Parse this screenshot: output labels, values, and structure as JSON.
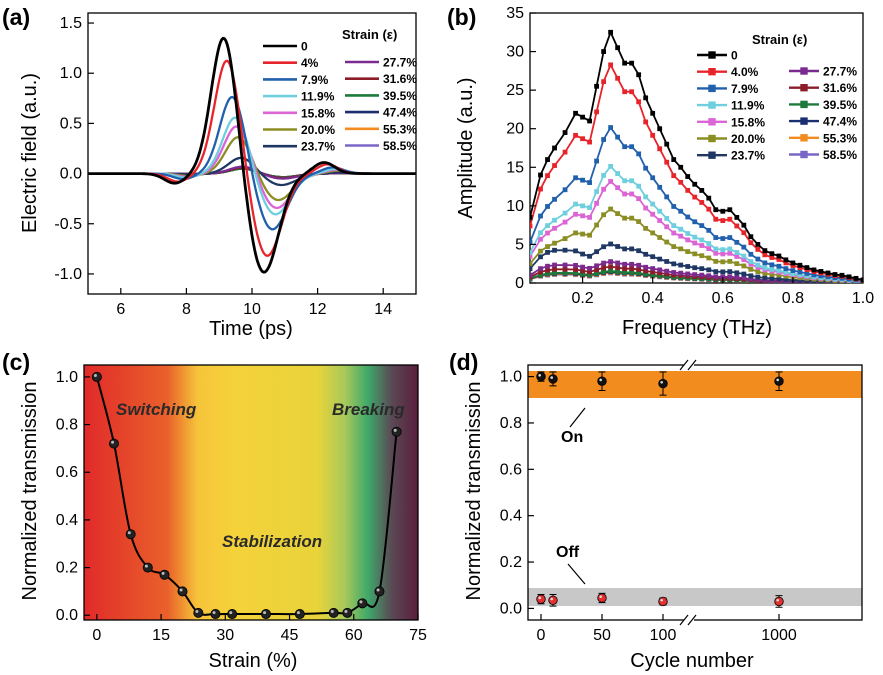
{
  "chart_data": [
    {
      "type": "line",
      "panel_label": "(a)",
      "xlabel": "Time (ps)",
      "ylabel": "Electric field (a.u.)",
      "xlim": [
        5,
        15
      ],
      "ylim": [
        -1.2,
        1.6
      ],
      "xticks": [
        "6",
        "8",
        "10",
        "12",
        "14"
      ],
      "yticks": [
        "1.5",
        "1.0",
        "0.5",
        "0.0",
        "-0.5",
        "-1.0"
      ],
      "legend_title": "Strain (ε)",
      "legend_position": "top-right",
      "series": [
        {
          "name": "0",
          "color": "#000000",
          "amplitude": 1.38
        },
        {
          "name": "4%",
          "color": "#e8242b",
          "amplitude": 1.15
        },
        {
          "name": "7.9%",
          "color": "#2160ad",
          "amplitude": 0.78
        },
        {
          "name": "11.9%",
          "color": "#6fcfde",
          "amplitude": 0.57
        },
        {
          "name": "15.8%",
          "color": "#dc65d6",
          "amplitude": 0.48
        },
        {
          "name": "20.0%",
          "color": "#8b8e24",
          "amplitude": 0.37
        },
        {
          "name": "23.7%",
          "color": "#1e3763",
          "amplitude": 0.16
        },
        {
          "name": "27.7%",
          "color": "#7b2a8e",
          "amplitude": 0.07
        },
        {
          "name": "31.6%",
          "color": "#8c1d29",
          "amplitude": 0.06
        },
        {
          "name": "39.5%",
          "color": "#1d7a3a",
          "amplitude": 0.05
        },
        {
          "name": "47.4%",
          "color": "#1b2e6f",
          "amplitude": 0.05
        },
        {
          "name": "55.3%",
          "color": "#f28c1e",
          "amplitude": 0.05
        },
        {
          "name": "58.5%",
          "color": "#7a66c6",
          "amplitude": 0.05
        }
      ]
    },
    {
      "type": "line",
      "panel_label": "(b)",
      "xlabel": "Frequency (THz)",
      "ylabel": "Amplitude (a.u.)",
      "xlim": [
        0.05,
        1.0
      ],
      "ylim": [
        0,
        35
      ],
      "xticks": [
        "0.2",
        "0.4",
        "0.6",
        "0.8",
        "1.0"
      ],
      "yticks": [
        "35",
        "30",
        "25",
        "20",
        "15",
        "10",
        "5",
        "0"
      ],
      "legend_title": "Strain (ε)",
      "legend_position": "top-right",
      "series": [
        {
          "name": "0",
          "color": "#000000",
          "scale": 1.0
        },
        {
          "name": "4.0%",
          "color": "#e8242b",
          "scale": 0.87
        },
        {
          "name": "7.9%",
          "color": "#2160ad",
          "scale": 0.62
        },
        {
          "name": "11.9%",
          "color": "#6fcfde",
          "scale": 0.465
        },
        {
          "name": "15.8%",
          "color": "#dc65d6",
          "scale": 0.405
        },
        {
          "name": "20.0%",
          "color": "#8b8e24",
          "scale": 0.295
        },
        {
          "name": "23.7%",
          "color": "#1e3763",
          "scale": 0.155
        },
        {
          "name": "27.7%",
          "color": "#7b2a8e",
          "scale": 0.085
        },
        {
          "name": "31.6%",
          "color": "#8c1d29",
          "scale": 0.065
        },
        {
          "name": "39.5%",
          "color": "#1d7a3a",
          "scale": 0.048
        },
        {
          "name": "47.4%",
          "color": "#1b2e6f",
          "scale": 0.045
        },
        {
          "name": "55.3%",
          "color": "#f28c1e",
          "scale": 0.042
        },
        {
          "name": "58.5%",
          "color": "#7a66c6",
          "scale": 0.04
        }
      ],
      "reference_spectrum": {
        "x": [
          0.05,
          0.08,
          0.1,
          0.12,
          0.15,
          0.18,
          0.2,
          0.22,
          0.24,
          0.26,
          0.28,
          0.3,
          0.32,
          0.34,
          0.36,
          0.38,
          0.4,
          0.42,
          0.44,
          0.46,
          0.48,
          0.5,
          0.52,
          0.54,
          0.56,
          0.58,
          0.6,
          0.62,
          0.64,
          0.66,
          0.68,
          0.7,
          0.72,
          0.74,
          0.76,
          0.78,
          0.8,
          0.82,
          0.84,
          0.86,
          0.88,
          0.9,
          0.92,
          0.94,
          0.96,
          0.98,
          1.0
        ],
        "y": [
          8.5,
          14.0,
          16.0,
          17.5,
          19.5,
          22.0,
          21.5,
          21.0,
          25.5,
          30.0,
          32.5,
          30.5,
          28.5,
          28.5,
          27.0,
          24.0,
          22.0,
          20.0,
          18.0,
          16.0,
          15.0,
          13.8,
          12.8,
          12.0,
          11.0,
          9.5,
          9.3,
          9.5,
          8.5,
          7.5,
          6.0,
          5.0,
          4.2,
          3.8,
          3.5,
          3.0,
          2.6,
          2.3,
          2.0,
          1.7,
          1.5,
          1.3,
          1.1,
          1.0,
          0.8,
          0.6,
          0.4
        ]
      }
    },
    {
      "type": "line",
      "panel_label": "(c)",
      "xlabel": "Strain (%)",
      "ylabel": "Normalized transmission",
      "xlim": [
        -3,
        75
      ],
      "ylim": [
        -0.02,
        1.05
      ],
      "xticks": [
        "0",
        "15",
        "30",
        "45",
        "60",
        "75"
      ],
      "yticks": [
        "1.0",
        "0.8",
        "0.6",
        "0.4",
        "0.2",
        "0.0"
      ],
      "regions": [
        "Switching",
        "Stabilization",
        "Breaking"
      ],
      "x": [
        0,
        4,
        7.9,
        11.9,
        15.8,
        20,
        23.7,
        27.7,
        31.6,
        39.5,
        47.4,
        55.3,
        58.5,
        62,
        66,
        70
      ],
      "y": [
        1.0,
        0.72,
        0.34,
        0.2,
        0.17,
        0.1,
        0.01,
        0.005,
        0.005,
        0.005,
        0.005,
        0.01,
        0.01,
        0.05,
        0.1,
        0.77
      ]
    },
    {
      "type": "scatter",
      "panel_label": "(d)",
      "xlabel": "Cycle number",
      "ylabel": "Normalized transmission",
      "ylim": [
        -0.05,
        1.05
      ],
      "xticks": [
        "0",
        "50",
        "100",
        "1000"
      ],
      "yticks": [
        "1.0",
        "0.8",
        "0.6",
        "0.4",
        "0.2",
        "0.0"
      ],
      "annotations": [
        "On",
        "Off"
      ],
      "series": [
        {
          "name": "On",
          "color": "#111111",
          "cycles": [
            0,
            10,
            50,
            100,
            1000
          ],
          "values": [
            1.0,
            0.99,
            0.98,
            0.97,
            0.98
          ],
          "errors": [
            0.02,
            0.03,
            0.04,
            0.05,
            0.04
          ]
        },
        {
          "name": "Off",
          "color": "#e23030",
          "cycles": [
            0,
            10,
            50,
            100,
            1000
          ],
          "values": [
            0.04,
            0.035,
            0.045,
            0.03,
            0.03
          ],
          "errors": [
            0.02,
            0.025,
            0.02,
            0.015,
            0.025
          ]
        }
      ]
    }
  ]
}
